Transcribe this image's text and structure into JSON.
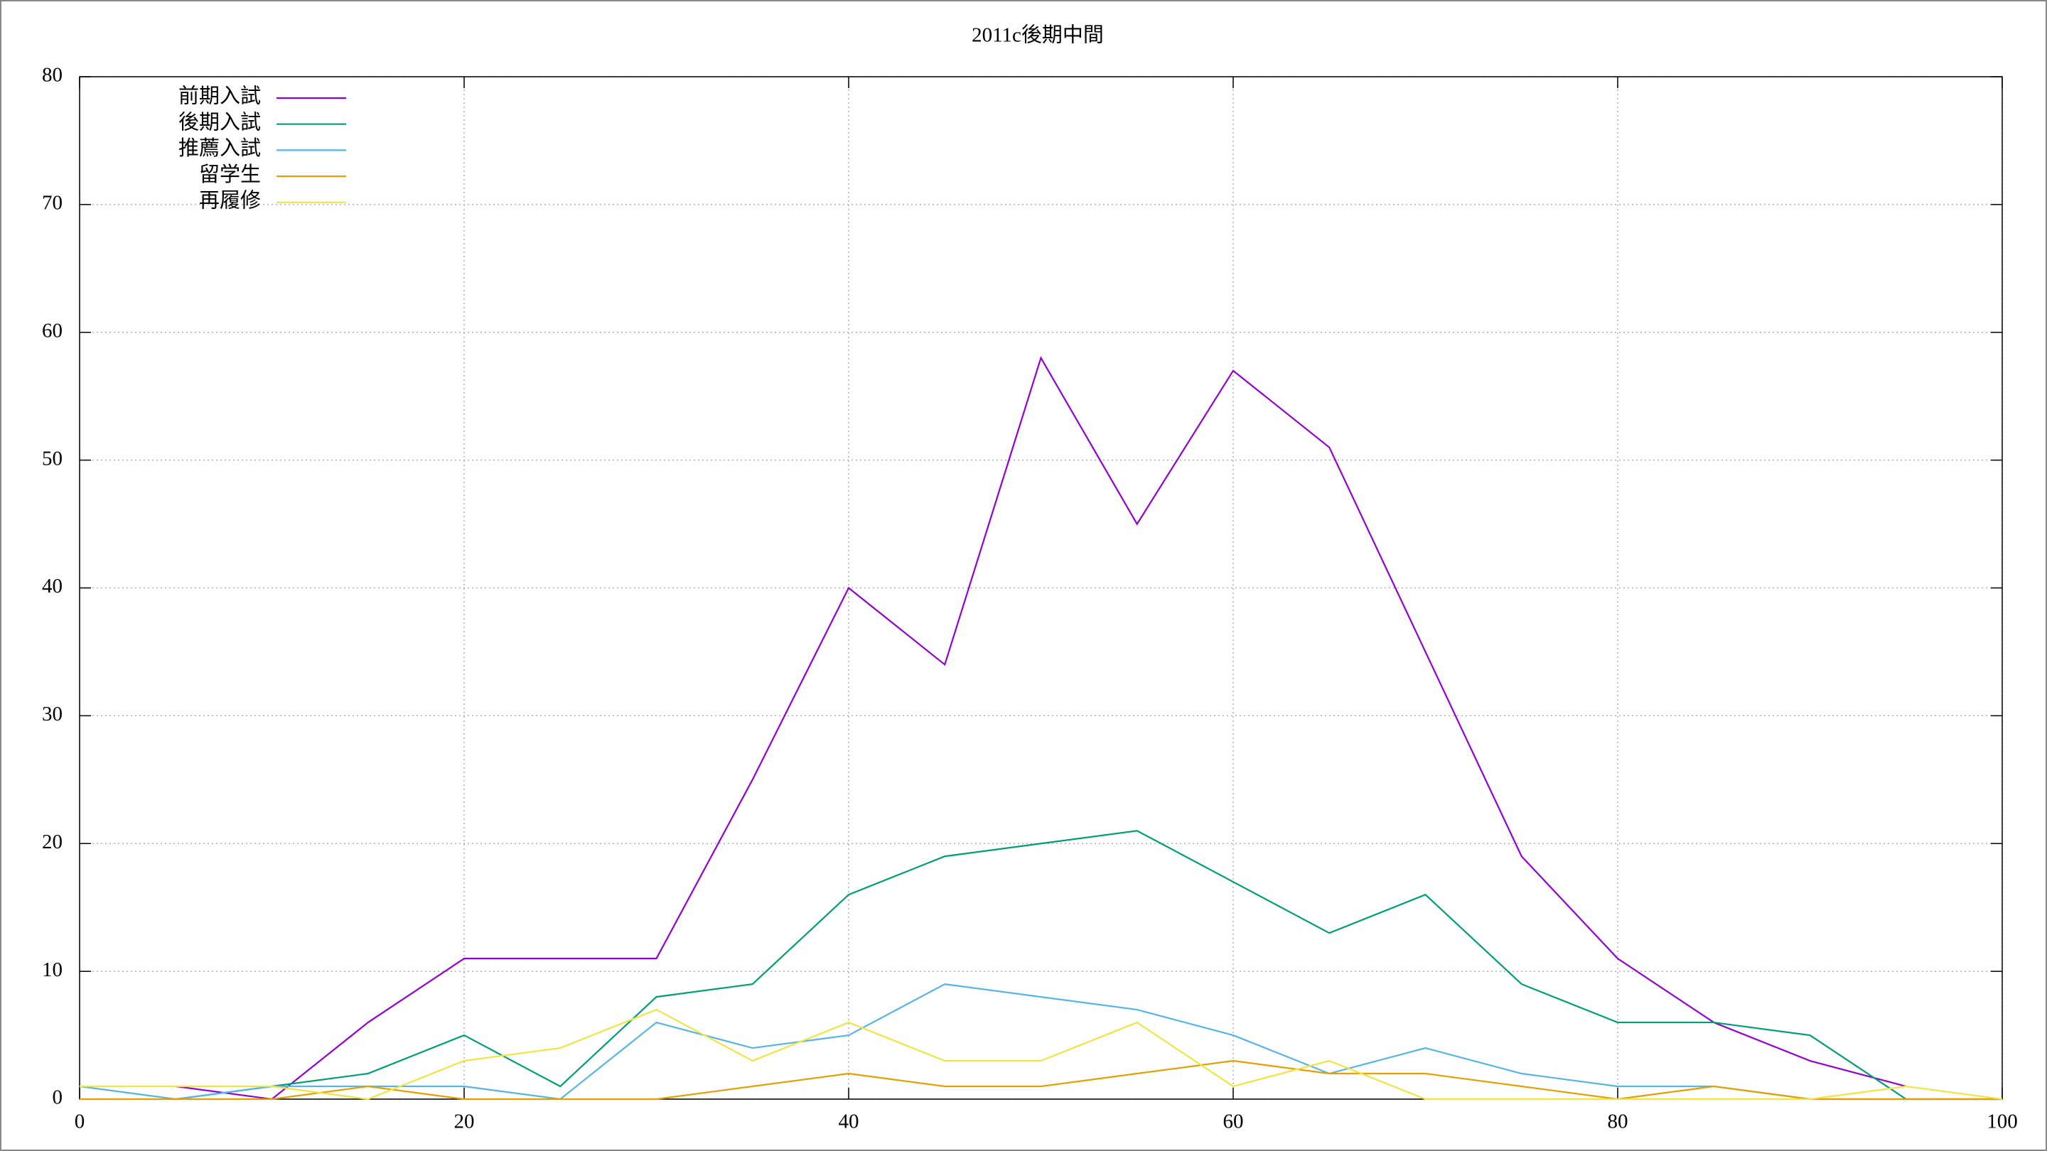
{
  "chart_data": {
    "type": "line",
    "title": "2011c後期中間",
    "x": [
      0,
      5,
      10,
      15,
      20,
      25,
      30,
      35,
      40,
      45,
      50,
      55,
      60,
      65,
      70,
      75,
      80,
      85,
      90,
      95,
      100
    ],
    "series": [
      {
        "name": "前期入試",
        "color": "#9400d3",
        "values": [
          null,
          1,
          0,
          6,
          11,
          11,
          11,
          25,
          40,
          34,
          58,
          45,
          57,
          51,
          35,
          19,
          11,
          6,
          3,
          1,
          null
        ]
      },
      {
        "name": "後期入試",
        "color": "#009e73",
        "values": [
          null,
          0,
          1,
          2,
          5,
          1,
          8,
          9,
          16,
          19,
          20,
          21,
          17,
          13,
          16,
          9,
          6,
          6,
          5,
          0,
          0
        ]
      },
      {
        "name": "推薦入試",
        "color": "#56b4e9",
        "values": [
          1,
          0,
          1,
          1,
          1,
          0,
          6,
          4,
          5,
          9,
          8,
          7,
          5,
          2,
          4,
          2,
          1,
          1,
          0,
          0,
          0
        ]
      },
      {
        "name": "留学生",
        "color": "#e69f00",
        "values": [
          0,
          0,
          0,
          1,
          0,
          0,
          0,
          1,
          2,
          1,
          1,
          2,
          3,
          2,
          2,
          1,
          0,
          1,
          0,
          0,
          0
        ]
      },
      {
        "name": "再履修",
        "color": "#f0e442",
        "values": [
          1,
          1,
          1,
          0,
          3,
          4,
          7,
          3,
          6,
          3,
          3,
          6,
          1,
          3,
          0,
          0,
          0,
          0,
          0,
          1,
          0
        ]
      }
    ],
    "xlim": [
      0,
      100
    ],
    "xticks": [
      0,
      20,
      40,
      60,
      80,
      100
    ],
    "ylim": [
      0,
      80
    ],
    "yticks": [
      0,
      10,
      20,
      30,
      40,
      50,
      60,
      70,
      80
    ],
    "grid": true,
    "legend": "top-left"
  }
}
